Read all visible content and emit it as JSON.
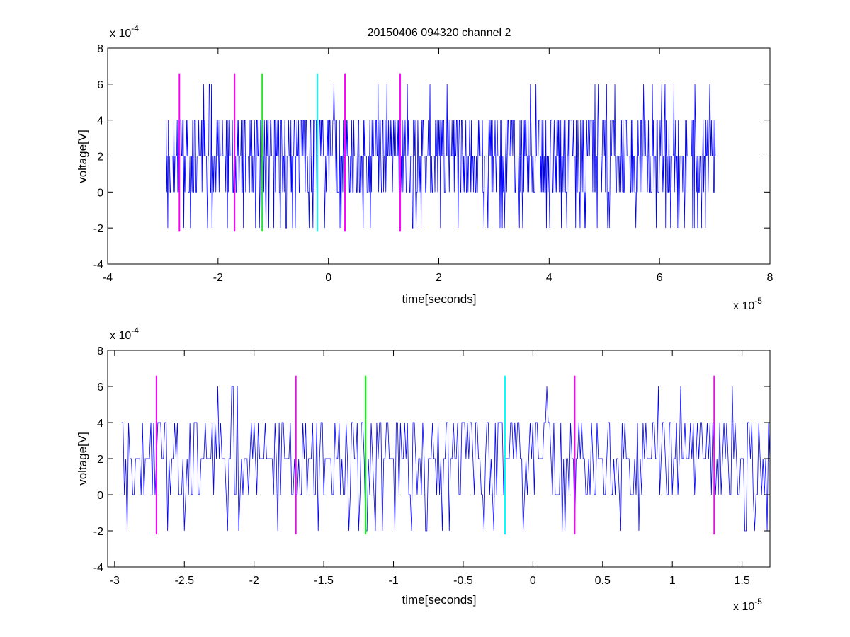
{
  "figure": {
    "title": "20150406 094320 channel 2",
    "background": "#ffffff",
    "trace_color": "#0000ff",
    "axis_color": "#000000"
  },
  "chart_data": [
    {
      "type": "line",
      "xlabel": "time[seconds]",
      "ylabel": "voltage[V]",
      "x_scale_label": {
        "base": "x 10",
        "exp": "-5"
      },
      "y_scale_label": {
        "base": "x 10",
        "exp": "-4"
      },
      "xlim": [
        -4e-05,
        8e-05
      ],
      "ylim": [
        -0.0004,
        0.0008
      ],
      "xticks": [
        -4e-05,
        -2e-05,
        0,
        2e-05,
        4e-05,
        6e-05,
        8e-05
      ],
      "xtick_labels": [
        "-4",
        "-2",
        "0",
        "2",
        "4",
        "6",
        "8"
      ],
      "yticks": [
        -0.0004,
        -0.0002,
        0,
        0.0002,
        0.0004,
        0.0006,
        0.0008
      ],
      "ytick_labels": [
        "-4",
        "-2",
        "0",
        "2",
        "4",
        "6",
        "8"
      ],
      "signal": {
        "t_start": -2.95e-05,
        "t_end": 7.02e-05,
        "sample_step": 1e-07,
        "levels": [
          -0.0002,
          0,
          0.0002,
          0.0004,
          0.0006
        ],
        "baseline": 0.0002,
        "color": "#0000ff"
      },
      "markers": [
        {
          "x": -2.7e-05,
          "color": "#ff00ff",
          "ymin": -0.00022,
          "ymax": 0.00066
        },
        {
          "x": -1.7e-05,
          "color": "#ff00ff",
          "ymin": -0.00022,
          "ymax": 0.00066
        },
        {
          "x": -1.2e-05,
          "color": "#00ff00",
          "ymin": -0.00022,
          "ymax": 0.00066
        },
        {
          "x": -2e-06,
          "color": "#00ffff",
          "ymin": -0.00022,
          "ymax": 0.00066
        },
        {
          "x": 3e-06,
          "color": "#ff00ff",
          "ymin": -0.00022,
          "ymax": 0.00066
        },
        {
          "x": 1.3e-05,
          "color": "#ff00ff",
          "ymin": -0.00022,
          "ymax": 0.00066
        }
      ]
    },
    {
      "type": "line",
      "xlabel": "time[seconds]",
      "ylabel": "voltage[V]",
      "x_scale_label": {
        "base": "x 10",
        "exp": "-5"
      },
      "y_scale_label": {
        "base": "x 10",
        "exp": "-4"
      },
      "xlim": [
        -3.05e-05,
        1.7e-05
      ],
      "ylim": [
        -0.0004,
        0.0008
      ],
      "xticks": [
        -3e-05,
        -2.5e-05,
        -2e-05,
        -1.5e-05,
        -1e-05,
        -5e-06,
        0,
        5e-06,
        1e-05,
        1.5e-05
      ],
      "xtick_labels": [
        "-3",
        "-2.5",
        "-2",
        "-1.5",
        "-1",
        "-0.5",
        "0",
        "0.5",
        "1",
        "1.5"
      ],
      "yticks": [
        -0.0004,
        -0.0002,
        0,
        0.0002,
        0.0004,
        0.0006,
        0.0008
      ],
      "ytick_labels": [
        "-4",
        "-2",
        "0",
        "2",
        "4",
        "6",
        "8"
      ],
      "signal": {
        "t_start": -2.95e-05,
        "t_end": 1.7e-05,
        "sample_step": 1e-07,
        "levels": [
          -0.0002,
          0,
          0.0002,
          0.0004,
          0.0006
        ],
        "baseline": 0.0002,
        "color": "#0000ff"
      },
      "markers": [
        {
          "x": -2.7e-05,
          "color": "#ff00ff",
          "ymin": -0.00022,
          "ymax": 0.00066
        },
        {
          "x": -1.7e-05,
          "color": "#ff00ff",
          "ymin": -0.00022,
          "ymax": 0.00066
        },
        {
          "x": -1.2e-05,
          "color": "#00ff00",
          "ymin": -0.00022,
          "ymax": 0.00066
        },
        {
          "x": -2e-06,
          "color": "#00ffff",
          "ymin": -0.00022,
          "ymax": 0.00066
        },
        {
          "x": 3e-06,
          "color": "#ff00ff",
          "ymin": -0.00022,
          "ymax": 0.00066
        },
        {
          "x": 1.3e-05,
          "color": "#ff00ff",
          "ymin": -0.00022,
          "ymax": 0.00066
        }
      ]
    }
  ]
}
